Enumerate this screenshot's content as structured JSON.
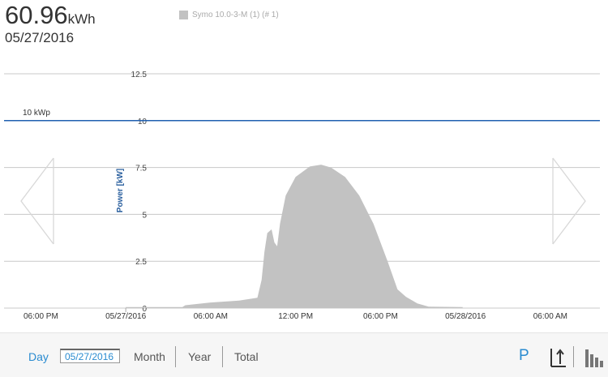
{
  "header": {
    "energy_value": "60.96",
    "energy_unit": "kWh",
    "date": "05/27/2016"
  },
  "legend": {
    "label": "Symo 10.0-3-M (1) (# 1)",
    "color": "#c2c2c2"
  },
  "chart_data": {
    "type": "area",
    "ylabel": "Power [kW]",
    "ylim": [
      0,
      12.5
    ],
    "yticks": [
      "0",
      "2.5",
      "5",
      "7.5",
      "10",
      "12.5"
    ],
    "yticks_values": [
      0,
      2.5,
      5,
      7.5,
      10,
      12.5
    ],
    "x_tick_labels": [
      "06:00 PM",
      "05/27/2016",
      "06:00 AM",
      "12:00 PM",
      "06:00 PM",
      "05/28/2016",
      "06:00 AM"
    ],
    "x_tick_hours": [
      -6,
      0,
      6,
      12,
      18,
      24,
      30
    ],
    "xlim_hours": [
      -8.6,
      33.5
    ],
    "reference_line": {
      "label": "10 kWp",
      "value": 10,
      "color": "#2060b0"
    },
    "series": [
      {
        "color": "#c2c2c2",
        "points": [
          [
            0,
            0.05
          ],
          [
            4,
            0.05
          ],
          [
            4.2,
            0.15
          ],
          [
            6,
            0.3
          ],
          [
            8,
            0.4
          ],
          [
            9.3,
            0.55
          ],
          [
            9.6,
            1.5
          ],
          [
            9.8,
            3.0
          ],
          [
            10.0,
            4.0
          ],
          [
            10.3,
            4.2
          ],
          [
            10.5,
            3.5
          ],
          [
            10.7,
            3.3
          ],
          [
            10.9,
            4.5
          ],
          [
            11.3,
            6.0
          ],
          [
            12.0,
            7.0
          ],
          [
            13.0,
            7.55
          ],
          [
            13.8,
            7.65
          ],
          [
            14.5,
            7.5
          ],
          [
            15.5,
            7.0
          ],
          [
            16.5,
            6.0
          ],
          [
            17.5,
            4.5
          ],
          [
            18.5,
            2.5
          ],
          [
            19.2,
            1.0
          ],
          [
            19.8,
            0.6
          ],
          [
            20.6,
            0.25
          ],
          [
            21.4,
            0.08
          ],
          [
            23.8,
            0.05
          ],
          [
            23.8,
            0
          ]
        ]
      }
    ]
  },
  "toolbar": {
    "day": "Day",
    "date_value": "05/27/2016",
    "month": "Month",
    "year": "Year",
    "total": "Total",
    "p": "P"
  }
}
